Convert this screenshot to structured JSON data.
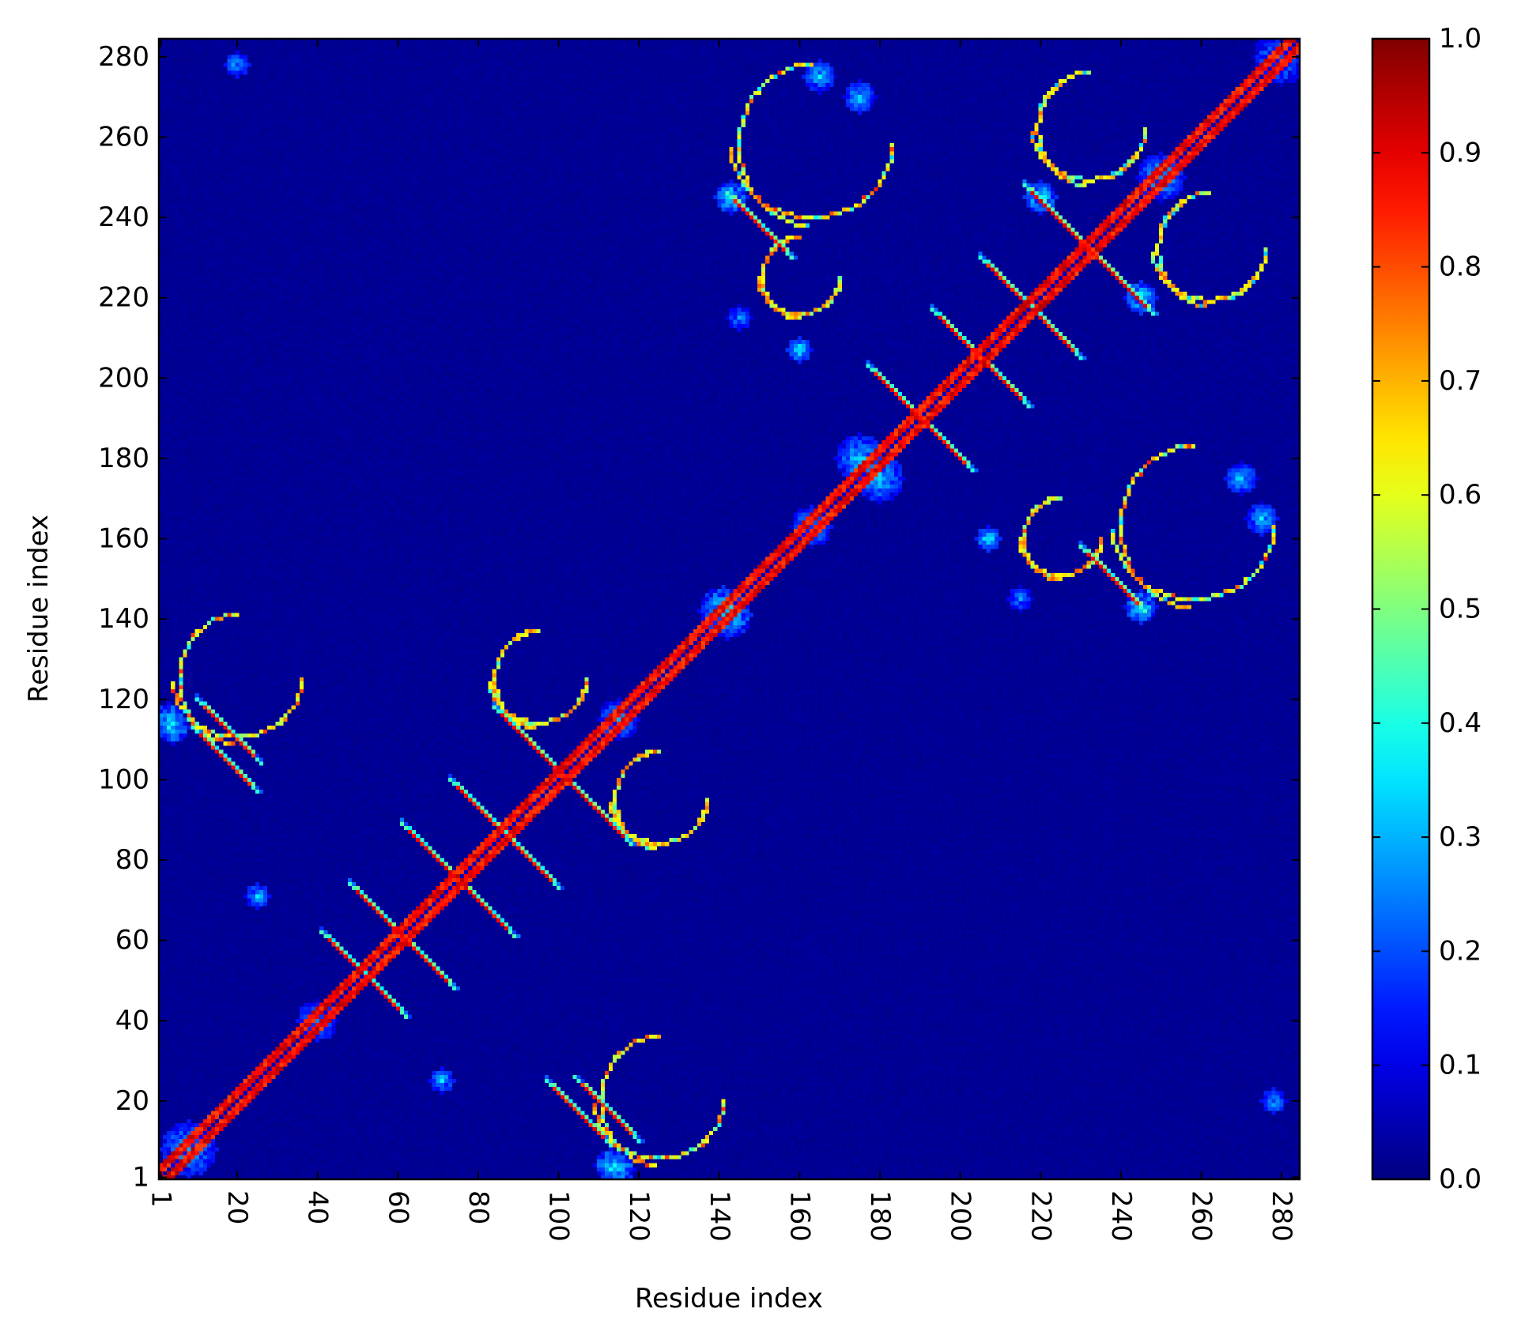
{
  "chart_data": {
    "type": "heatmap",
    "title": "",
    "xlabel": "Residue index",
    "ylabel": "Residue index",
    "n": 284,
    "xlim": [
      1,
      284
    ],
    "ylim": [
      1,
      284
    ],
    "x_ticks": [
      1,
      20,
      40,
      60,
      80,
      100,
      120,
      140,
      160,
      180,
      200,
      220,
      240,
      260,
      280
    ],
    "y_ticks": [
      1,
      20,
      40,
      60,
      80,
      100,
      120,
      140,
      160,
      180,
      200,
      220,
      240,
      260,
      280
    ],
    "x_tick_labels": [
      "1",
      "20",
      "40",
      "60",
      "80",
      "100",
      "120",
      "140",
      "160",
      "180",
      "200",
      "220",
      "240",
      "260",
      "280"
    ],
    "y_tick_labels": [
      "1",
      "20",
      "40",
      "60",
      "80",
      "100",
      "120",
      "140",
      "160",
      "180",
      "200",
      "220",
      "240",
      "260",
      "280"
    ],
    "x_tick_rotation": -90,
    "grid": false,
    "symmetric": true,
    "background_value": 0.02,
    "colormap": "jet",
    "colorbar": {
      "range": [
        0.0,
        1.0
      ],
      "ticks": [
        0.0,
        0.1,
        0.2,
        0.3,
        0.4,
        0.5,
        0.6,
        0.7,
        0.8,
        0.9,
        1.0
      ],
      "tick_labels": [
        "0.0",
        "0.1",
        "0.2",
        "0.3",
        "0.4",
        "0.5",
        "0.6",
        "0.7",
        "0.8",
        "0.9",
        "1.0"
      ]
    },
    "diagonal_band": {
      "half_width": 3,
      "value": 0.95
    },
    "antidiagonal_contacts": [
      {
        "center": [
          52,
          51
        ],
        "extent": 10,
        "value": 0.9
      },
      {
        "center": [
          62,
          60
        ],
        "extent": 12,
        "value": 0.92
      },
      {
        "center": [
          77,
          73
        ],
        "extent": 12,
        "value": 0.92
      },
      {
        "center": [
          88,
          85
        ],
        "extent": 12,
        "value": 0.9
      },
      {
        "center": [
          103,
          99
        ],
        "extent": 15,
        "value": 0.92
      },
      {
        "center": [
          17,
          105
        ],
        "extent": 8,
        "value": 0.9
      },
      {
        "center": [
          112,
          18
        ],
        "extent": 8,
        "value": 0.9
      },
      {
        "center": [
          150,
          238
        ],
        "extent": 8,
        "value": 0.9
      },
      {
        "center": [
          238,
          150
        ],
        "extent": 8,
        "value": 0.9
      },
      {
        "center": [
          190,
          190
        ],
        "extent": 13,
        "value": 0.9
      },
      {
        "center": [
          205,
          205
        ],
        "extent": 12,
        "value": 0.9
      },
      {
        "center": [
          218,
          217
        ],
        "extent": 12,
        "value": 0.9
      },
      {
        "center": [
          232,
          232
        ],
        "extent": 16,
        "value": 0.92
      }
    ],
    "clusters": [
      {
        "center": [
          8,
          8
        ],
        "radius": 7,
        "value": 0.3
      },
      {
        "center": [
          40,
          40
        ],
        "radius": 5,
        "value": 0.28
      },
      {
        "center": [
          115,
          115
        ],
        "radius": 5,
        "value": 0.3
      },
      {
        "center": [
          142,
          141
        ],
        "radius": 6,
        "value": 0.35
      },
      {
        "center": [
          163,
          163
        ],
        "radius": 5,
        "value": 0.3
      },
      {
        "center": [
          175,
          180
        ],
        "radius": 6,
        "value": 0.3
      },
      {
        "center": [
          180,
          175
        ],
        "radius": 6,
        "value": 0.3
      },
      {
        "center": [
          250,
          250
        ],
        "radius": 6,
        "value": 0.3
      },
      {
        "center": [
          278,
          280
        ],
        "radius": 5,
        "value": 0.25
      },
      {
        "center": [
          3,
          115
        ],
        "radius": 4,
        "value": 0.35
      },
      {
        "center": [
          113,
          4
        ],
        "radius": 4,
        "value": 0.35
      },
      {
        "center": [
          143,
          245
        ],
        "radius": 4,
        "value": 0.35
      },
      {
        "center": [
          245,
          143
        ],
        "radius": 4,
        "value": 0.35
      },
      {
        "center": [
          220,
          245
        ],
        "radius": 4,
        "value": 0.35
      },
      {
        "center": [
          245,
          220
        ],
        "radius": 4,
        "value": 0.35
      },
      {
        "center": [
          20,
          278
        ],
        "radius": 3,
        "value": 0.3
      },
      {
        "center": [
          278,
          20
        ],
        "radius": 3,
        "value": 0.3
      },
      {
        "center": [
          25,
          71
        ],
        "radius": 3,
        "value": 0.3
      },
      {
        "center": [
          71,
          25
        ],
        "radius": 3,
        "value": 0.3
      },
      {
        "center": [
          215,
          145
        ],
        "radius": 3,
        "value": 0.25
      },
      {
        "center": [
          145,
          215
        ],
        "radius": 3,
        "value": 0.25
      },
      {
        "center": [
          165,
          275
        ],
        "radius": 4,
        "value": 0.3
      },
      {
        "center": [
          275,
          165
        ],
        "radius": 4,
        "value": 0.3
      },
      {
        "center": [
          160,
          207
        ],
        "radius": 3,
        "value": 0.35
      },
      {
        "center": [
          207,
          160
        ],
        "radius": 3,
        "value": 0.35
      },
      {
        "center": [
          270,
          175
        ],
        "radius": 4,
        "value": 0.3
      },
      {
        "center": [
          175,
          270
        ],
        "radius": 4,
        "value": 0.3
      }
    ],
    "arcs": [
      {
        "center": [
          20,
          125
        ],
        "radius": 16,
        "value": 0.85
      },
      {
        "center": [
          125,
          20
        ],
        "radius": 16,
        "value": 0.85
      },
      {
        "center": [
          163,
          258
        ],
        "radius": 20,
        "value": 0.85
      },
      {
        "center": [
          258,
          163
        ],
        "radius": 20,
        "value": 0.85
      },
      {
        "center": [
          232,
          262
        ],
        "radius": 14,
        "value": 0.8
      },
      {
        "center": [
          262,
          232
        ],
        "radius": 14,
        "value": 0.8
      },
      {
        "center": [
          95,
          125
        ],
        "radius": 12,
        "value": 0.8
      },
      {
        "center": [
          125,
          95
        ],
        "radius": 12,
        "value": 0.8
      },
      {
        "center": [
          160,
          225
        ],
        "radius": 10,
        "value": 0.8
      },
      {
        "center": [
          225,
          160
        ],
        "radius": 10,
        "value": 0.8
      }
    ]
  }
}
